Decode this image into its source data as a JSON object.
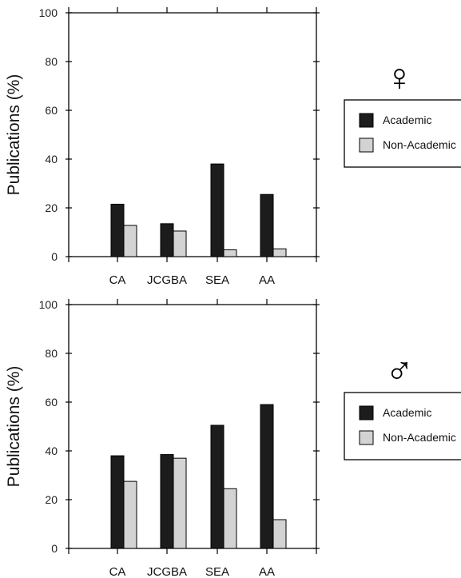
{
  "colors": {
    "academic": "#1c1c1c",
    "non_academic": "#d3d3d3",
    "axis": "#000000"
  },
  "chart_data": [
    {
      "type": "bar",
      "symbol": "♀",
      "categories": [
        "CA",
        "JCGBA",
        "SEA",
        "AA"
      ],
      "series": [
        {
          "name": "Academic",
          "values": [
            21.5,
            13.5,
            38,
            25.5
          ]
        },
        {
          "name": "Non-Academic",
          "values": [
            12.8,
            10.5,
            2.8,
            3.2
          ]
        }
      ],
      "ylabel": "Publications (%)",
      "xlabel": "",
      "ylim": [
        0,
        100
      ],
      "yticks": [
        "0",
        "20",
        "40",
        "60",
        "80",
        "100"
      ],
      "grid": false,
      "legend": "right"
    },
    {
      "type": "bar",
      "symbol": "♂",
      "categories": [
        "CA",
        "JCGBA",
        "SEA",
        "AA"
      ],
      "series": [
        {
          "name": "Academic",
          "values": [
            38,
            38.5,
            50.5,
            59
          ]
        },
        {
          "name": "Non-Academic",
          "values": [
            27.5,
            37,
            24.5,
            11.8
          ]
        }
      ],
      "ylabel": "Publications (%)",
      "xlabel": "",
      "ylim": [
        0,
        100
      ],
      "yticks": [
        "0",
        "20",
        "40",
        "60",
        "80",
        "100"
      ],
      "grid": false,
      "legend": "right"
    }
  ]
}
